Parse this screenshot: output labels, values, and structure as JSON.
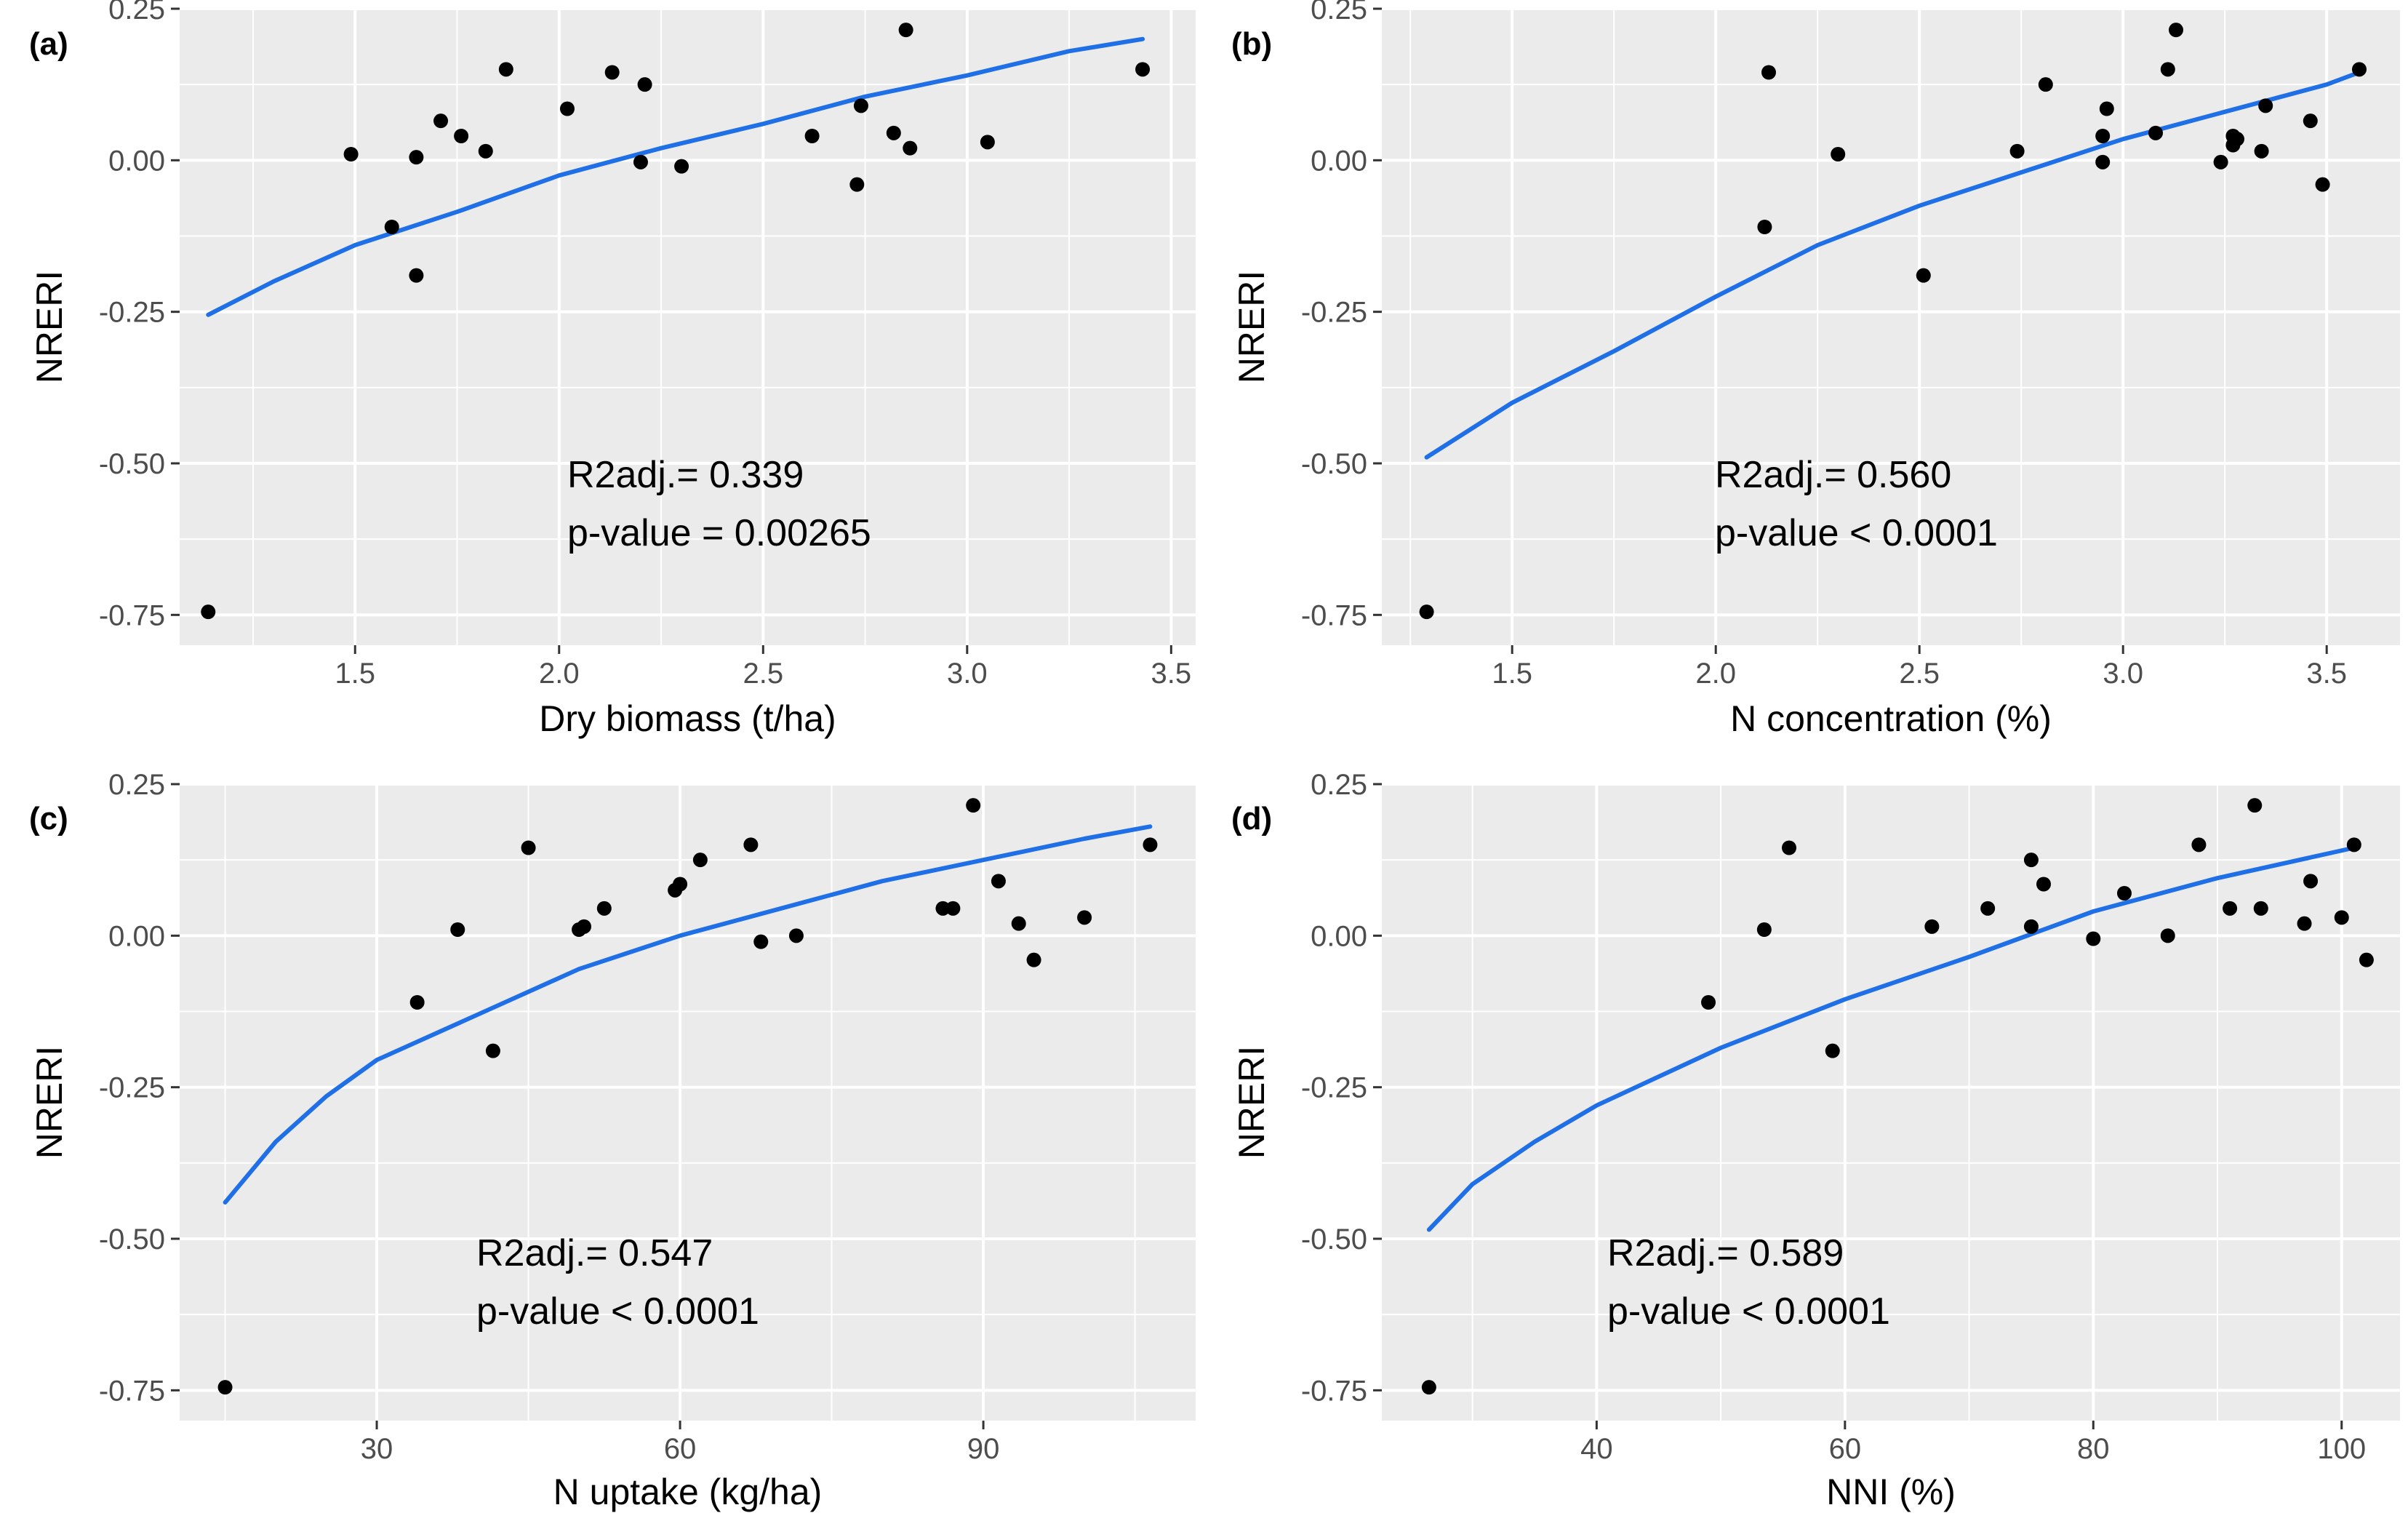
{
  "chart_data": [
    {
      "type": "scatter",
      "panel_label": "(a)",
      "xlabel": "Dry biomass (t/ha)",
      "ylabel": "NRERI",
      "xlim": [
        1.07,
        3.56
      ],
      "ylim": [
        -0.8,
        0.25
      ],
      "x_ticks": [
        1.5,
        2.0,
        2.5,
        3.0,
        3.5
      ],
      "x_tick_labels": [
        "1.5",
        "2.0",
        "2.5",
        "3.0",
        "3.5"
      ],
      "y_ticks": [
        -0.75,
        -0.5,
        -0.25,
        0.0,
        0.25
      ],
      "y_tick_labels": [
        "-0.75",
        "-0.50",
        "-0.25",
        "0.00",
        "0.25"
      ],
      "grid": true,
      "points": [
        [
          1.14,
          -0.745
        ],
        [
          1.49,
          0.01
        ],
        [
          1.59,
          -0.11
        ],
        [
          1.65,
          0.005
        ],
        [
          1.65,
          -0.19
        ],
        [
          1.71,
          0.065
        ],
        [
          1.76,
          0.04
        ],
        [
          1.82,
          0.015
        ],
        [
          1.87,
          0.15
        ],
        [
          2.02,
          0.085
        ],
        [
          2.13,
          0.145
        ],
        [
          2.2,
          -0.003
        ],
        [
          2.21,
          0.125
        ],
        [
          2.3,
          -0.01
        ],
        [
          2.62,
          0.04
        ],
        [
          2.73,
          -0.04
        ],
        [
          2.74,
          0.09
        ],
        [
          2.82,
          0.045
        ],
        [
          2.85,
          0.215
        ],
        [
          2.86,
          0.02
        ],
        [
          3.05,
          0.03
        ],
        [
          3.43,
          0.15
        ]
      ],
      "fit_line": [
        [
          1.14,
          -0.255
        ],
        [
          1.3,
          -0.2
        ],
        [
          1.5,
          -0.14
        ],
        [
          1.75,
          -0.085
        ],
        [
          2.0,
          -0.025
        ],
        [
          2.25,
          0.02
        ],
        [
          2.5,
          0.06
        ],
        [
          2.75,
          0.105
        ],
        [
          3.0,
          0.14
        ],
        [
          3.25,
          0.18
        ],
        [
          3.43,
          0.2
        ]
      ],
      "annotation": [
        "R2adj.= 0.339",
        "p-value = 0.00265"
      ]
    },
    {
      "type": "scatter",
      "panel_label": "(b)",
      "xlabel": "N concentration (%)",
      "ylabel": "NRERI",
      "xlim": [
        1.18,
        3.68
      ],
      "ylim": [
        -0.8,
        0.25
      ],
      "x_ticks": [
        1.5,
        2.0,
        2.5,
        3.0,
        3.5
      ],
      "x_tick_labels": [
        "1.5",
        "2.0",
        "2.5",
        "3.0",
        "3.5"
      ],
      "y_ticks": [
        -0.75,
        -0.5,
        -0.25,
        0.0,
        0.25
      ],
      "y_tick_labels": [
        "-0.75",
        "-0.50",
        "-0.25",
        "0.00",
        "0.25"
      ],
      "grid": true,
      "points": [
        [
          1.29,
          -0.745
        ],
        [
          2.12,
          -0.11
        ],
        [
          2.13,
          0.145
        ],
        [
          2.3,
          0.01
        ],
        [
          2.51,
          -0.19
        ],
        [
          2.74,
          0.015
        ],
        [
          2.81,
          0.125
        ],
        [
          2.95,
          -0.003
        ],
        [
          2.95,
          0.04
        ],
        [
          2.96,
          0.085
        ],
        [
          3.08,
          0.045
        ],
        [
          3.11,
          0.15
        ],
        [
          3.13,
          0.215
        ],
        [
          3.24,
          -0.003
        ],
        [
          3.27,
          0.025
        ],
        [
          3.27,
          0.04
        ],
        [
          3.28,
          0.035
        ],
        [
          3.34,
          0.015
        ],
        [
          3.35,
          0.09
        ],
        [
          3.46,
          0.065
        ],
        [
          3.49,
          -0.04
        ],
        [
          3.58,
          0.15
        ]
      ],
      "fit_line": [
        [
          1.29,
          -0.49
        ],
        [
          1.5,
          -0.4
        ],
        [
          1.75,
          -0.315
        ],
        [
          2.0,
          -0.225
        ],
        [
          2.25,
          -0.14
        ],
        [
          2.5,
          -0.075
        ],
        [
          2.75,
          -0.02
        ],
        [
          3.0,
          0.035
        ],
        [
          3.25,
          0.08
        ],
        [
          3.5,
          0.125
        ],
        [
          3.58,
          0.145
        ]
      ],
      "annotation": [
        "R2adj.= 0.560",
        "p-value < 0.0001"
      ]
    },
    {
      "type": "scatter",
      "panel_label": "(c)",
      "xlabel": "N uptake (kg/ha)",
      "ylabel": "NRERI",
      "xlim": [
        10.5,
        111.0
      ],
      "ylim": [
        -0.8,
        0.25
      ],
      "x_ticks": [
        30,
        60,
        90
      ],
      "x_tick_labels": [
        "30",
        "60",
        "90"
      ],
      "y_ticks": [
        -0.75,
        -0.5,
        -0.25,
        0.0,
        0.25
      ],
      "y_tick_labels": [
        "-0.75",
        "-0.50",
        "-0.25",
        "0.00",
        "0.25"
      ],
      "grid": true,
      "points": [
        [
          15.0,
          -0.745
        ],
        [
          34.0,
          -0.11
        ],
        [
          38.0,
          0.01
        ],
        [
          41.5,
          -0.19
        ],
        [
          45.0,
          0.145
        ],
        [
          50.0,
          0.01
        ],
        [
          50.5,
          0.015
        ],
        [
          52.5,
          0.045
        ],
        [
          59.5,
          0.075
        ],
        [
          60.0,
          0.085
        ],
        [
          62.0,
          0.125
        ],
        [
          67.0,
          0.15
        ],
        [
          68.0,
          -0.01
        ],
        [
          71.5,
          0.0
        ],
        [
          86.0,
          0.045
        ],
        [
          87.0,
          0.045
        ],
        [
          89.0,
          0.215
        ],
        [
          91.5,
          0.09
        ],
        [
          93.5,
          0.02
        ],
        [
          95.0,
          -0.04
        ],
        [
          100.0,
          0.03
        ],
        [
          106.5,
          0.15
        ]
      ],
      "fit_line": [
        [
          15,
          -0.44
        ],
        [
          20,
          -0.34
        ],
        [
          25,
          -0.265
        ],
        [
          30,
          -0.205
        ],
        [
          40,
          -0.13
        ],
        [
          50,
          -0.055
        ],
        [
          60,
          0.0
        ],
        [
          70,
          0.045
        ],
        [
          80,
          0.09
        ],
        [
          90,
          0.125
        ],
        [
          100,
          0.16
        ],
        [
          106.5,
          0.18
        ]
      ],
      "annotation": [
        "R2adj.= 0.547",
        "p-value < 0.0001"
      ]
    },
    {
      "type": "scatter",
      "panel_label": "(d)",
      "xlabel": "NNI (%)",
      "ylabel": "NRERI",
      "xlim": [
        22.7,
        104.7
      ],
      "ylim": [
        -0.8,
        0.25
      ],
      "x_ticks": [
        40,
        60,
        80,
        100
      ],
      "x_tick_labels": [
        "40",
        "60",
        "80",
        "100"
      ],
      "y_ticks": [
        -0.75,
        -0.5,
        -0.25,
        0.0,
        0.25
      ],
      "y_tick_labels": [
        "-0.75",
        "-0.50",
        "-0.25",
        "0.00",
        "0.25"
      ],
      "grid": true,
      "points": [
        [
          26.5,
          -0.745
        ],
        [
          49.0,
          -0.11
        ],
        [
          53.5,
          0.01
        ],
        [
          55.5,
          0.145
        ],
        [
          59.0,
          -0.19
        ],
        [
          67.0,
          0.015
        ],
        [
          71.5,
          0.045
        ],
        [
          75.0,
          0.015
        ],
        [
          75.0,
          0.125
        ],
        [
          76.0,
          0.085
        ],
        [
          80.0,
          -0.005
        ],
        [
          82.5,
          0.07
        ],
        [
          86.0,
          0.0
        ],
        [
          88.5,
          0.15
        ],
        [
          91.0,
          0.045
        ],
        [
          93.0,
          0.215
        ],
        [
          93.5,
          0.045
        ],
        [
          97.0,
          0.02
        ],
        [
          97.5,
          0.09
        ],
        [
          100.0,
          0.03
        ],
        [
          101.0,
          0.15
        ],
        [
          102.0,
          -0.04
        ]
      ],
      "fit_line": [
        [
          26.5,
          -0.485
        ],
        [
          30,
          -0.41
        ],
        [
          35,
          -0.34
        ],
        [
          40,
          -0.28
        ],
        [
          50,
          -0.185
        ],
        [
          60,
          -0.105
        ],
        [
          70,
          -0.035
        ],
        [
          80,
          0.04
        ],
        [
          90,
          0.095
        ],
        [
          101,
          0.145
        ]
      ],
      "annotation": [
        "R2adj.= 0.589",
        "p-value < 0.0001"
      ]
    }
  ],
  "colors": {
    "panel_background": "#ebebeb",
    "grid": "#ffffff",
    "points": "#000000",
    "fit_line": "#1f6fe6"
  }
}
